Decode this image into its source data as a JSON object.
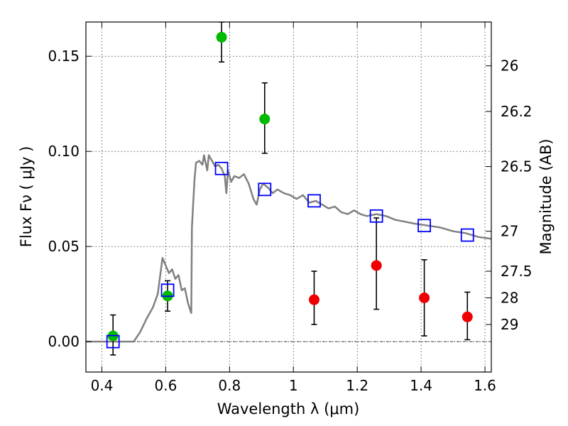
{
  "chart_data": {
    "type": "scatter",
    "xlabel": "Wavelength  λ (μm)",
    "ylabel": "Flux  Fν  ( μJy )",
    "ylabel_right": "Magnitude (AB)",
    "xlim": [
      0.35,
      1.62
    ],
    "ylim": [
      -0.016,
      0.168
    ],
    "x_ticks": [
      0.4,
      0.6,
      0.8,
      1,
      1.2,
      1.4,
      1.6
    ],
    "x_tick_labels": [
      "0.4",
      "0.6",
      "0.8",
      "1",
      "1.2",
      "1.4",
      "1.6"
    ],
    "y_ticks": [
      0.0,
      0.05,
      0.1,
      0.15
    ],
    "y_tick_labels": [
      "0.00",
      "0.05",
      "0.10",
      "0.15"
    ],
    "right_ticks": [
      {
        "label": "26",
        "flux": 0.145
      },
      {
        "label": "26.2",
        "flux": 0.121
      },
      {
        "label": "26.5",
        "flux": 0.092
      },
      {
        "label": "27",
        "flux": 0.058
      },
      {
        "label": "27.5",
        "flux": 0.037
      },
      {
        "label": "28",
        "flux": 0.023
      },
      {
        "label": "29",
        "flux": 0.009
      }
    ],
    "grid": true,
    "zero_line": true,
    "colors": {
      "green": "#00bb00",
      "red": "#ee0000",
      "blue": "#0000ff",
      "model": "#808080",
      "errorbar": "#000000"
    },
    "series": [
      {
        "marker": "green-circle",
        "points": [
          {
            "x": 0.435,
            "y": 0.003,
            "lo": -0.007,
            "hi": 0.014
          },
          {
            "x": 0.606,
            "y": 0.024,
            "lo": 0.016,
            "hi": 0.032
          },
          {
            "x": 0.775,
            "y": 0.16,
            "lo": 0.147,
            "hi": 0.168
          },
          {
            "x": 0.91,
            "y": 0.117,
            "lo": 0.099,
            "hi": 0.136
          }
        ]
      },
      {
        "marker": "red-circle",
        "points": [
          {
            "x": 1.065,
            "y": 0.022,
            "lo": 0.009,
            "hi": 0.037
          },
          {
            "x": 1.26,
            "y": 0.04,
            "lo": 0.017,
            "hi": 0.065
          },
          {
            "x": 1.41,
            "y": 0.023,
            "lo": 0.003,
            "hi": 0.043
          },
          {
            "x": 1.545,
            "y": 0.013,
            "lo": 0.001,
            "hi": 0.026
          }
        ]
      },
      {
        "marker": "blue-open-square",
        "points": [
          {
            "x": 0.435,
            "y": 0.0
          },
          {
            "x": 0.606,
            "y": 0.027
          },
          {
            "x": 0.775,
            "y": 0.091
          },
          {
            "x": 0.91,
            "y": 0.08
          },
          {
            "x": 1.065,
            "y": 0.074
          },
          {
            "x": 1.26,
            "y": 0.066
          },
          {
            "x": 1.41,
            "y": 0.061
          },
          {
            "x": 1.545,
            "y": 0.056
          }
        ]
      }
    ],
    "model_curve": [
      [
        0.35,
        0.0
      ],
      [
        0.5,
        0.0
      ],
      [
        0.52,
        0.005
      ],
      [
        0.54,
        0.012
      ],
      [
        0.56,
        0.018
      ],
      [
        0.575,
        0.025
      ],
      [
        0.59,
        0.044
      ],
      [
        0.6,
        0.04
      ],
      [
        0.61,
        0.036
      ],
      [
        0.62,
        0.038
      ],
      [
        0.63,
        0.033
      ],
      [
        0.64,
        0.035
      ],
      [
        0.65,
        0.027
      ],
      [
        0.66,
        0.028
      ],
      [
        0.67,
        0.02
      ],
      [
        0.68,
        0.015
      ],
      [
        0.682,
        0.06
      ],
      [
        0.69,
        0.085
      ],
      [
        0.695,
        0.094
      ],
      [
        0.705,
        0.095
      ],
      [
        0.715,
        0.093
      ],
      [
        0.72,
        0.098
      ],
      [
        0.725,
        0.094
      ],
      [
        0.73,
        0.09
      ],
      [
        0.735,
        0.098
      ],
      [
        0.745,
        0.095
      ],
      [
        0.755,
        0.092
      ],
      [
        0.765,
        0.093
      ],
      [
        0.775,
        0.091
      ],
      [
        0.785,
        0.087
      ],
      [
        0.79,
        0.078
      ],
      [
        0.795,
        0.09
      ],
      [
        0.805,
        0.084
      ],
      [
        0.815,
        0.087
      ],
      [
        0.83,
        0.086
      ],
      [
        0.845,
        0.088
      ],
      [
        0.86,
        0.083
      ],
      [
        0.875,
        0.075
      ],
      [
        0.885,
        0.072
      ],
      [
        0.895,
        0.08
      ],
      [
        0.905,
        0.083
      ],
      [
        0.92,
        0.081
      ],
      [
        0.935,
        0.078
      ],
      [
        0.95,
        0.08
      ],
      [
        0.97,
        0.078
      ],
      [
        0.99,
        0.077
      ],
      [
        1.01,
        0.075
      ],
      [
        1.03,
        0.077
      ],
      [
        1.05,
        0.073
      ],
      [
        1.07,
        0.074
      ],
      [
        1.09,
        0.072
      ],
      [
        1.11,
        0.07
      ],
      [
        1.13,
        0.071
      ],
      [
        1.15,
        0.068
      ],
      [
        1.17,
        0.067
      ],
      [
        1.19,
        0.069
      ],
      [
        1.21,
        0.067
      ],
      [
        1.23,
        0.066
      ],
      [
        1.26,
        0.067
      ],
      [
        1.29,
        0.066
      ],
      [
        1.32,
        0.064
      ],
      [
        1.35,
        0.063
      ],
      [
        1.38,
        0.062
      ],
      [
        1.42,
        0.061
      ],
      [
        1.46,
        0.06
      ],
      [
        1.5,
        0.058
      ],
      [
        1.54,
        0.057
      ],
      [
        1.58,
        0.055
      ],
      [
        1.62,
        0.054
      ]
    ]
  }
}
